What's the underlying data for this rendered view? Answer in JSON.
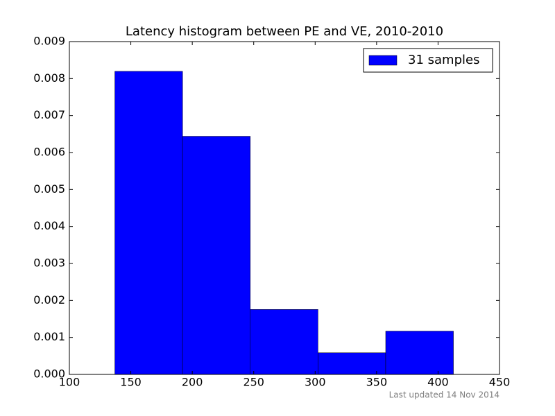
{
  "chart_data": {
    "type": "histogram",
    "title": "Latency histogram between PE and VE, 2010-2010",
    "bins": [
      137,
      192.1,
      247.2,
      302.3,
      357.4,
      412.5
    ],
    "values": [
      0.008196,
      0.00644,
      0.001756,
      0.000585,
      0.001171
    ],
    "series_name": "31 samples",
    "color": "#0000ff",
    "legend": "upper right",
    "xlim": [
      100,
      450
    ],
    "xticks": [
      100,
      150,
      200,
      250,
      300,
      350,
      400,
      450
    ],
    "ylim": [
      0,
      0.009
    ],
    "yticks": [
      {
        "value": 0,
        "label": "0.000"
      },
      {
        "value": 0.001,
        "label": "0.001"
      },
      {
        "value": 0.002,
        "label": "0.002"
      },
      {
        "value": 0.003,
        "label": "0.003"
      },
      {
        "value": 0.004,
        "label": "0.004"
      },
      {
        "value": 0.005,
        "label": "0.005"
      },
      {
        "value": 0.006,
        "label": "0.006"
      },
      {
        "value": 0.007,
        "label": "0.007"
      },
      {
        "value": 0.008,
        "label": "0.008"
      },
      {
        "value": 0.009,
        "label": "0.009"
      }
    ],
    "footer": "Last updated 14 Nov 2014"
  }
}
